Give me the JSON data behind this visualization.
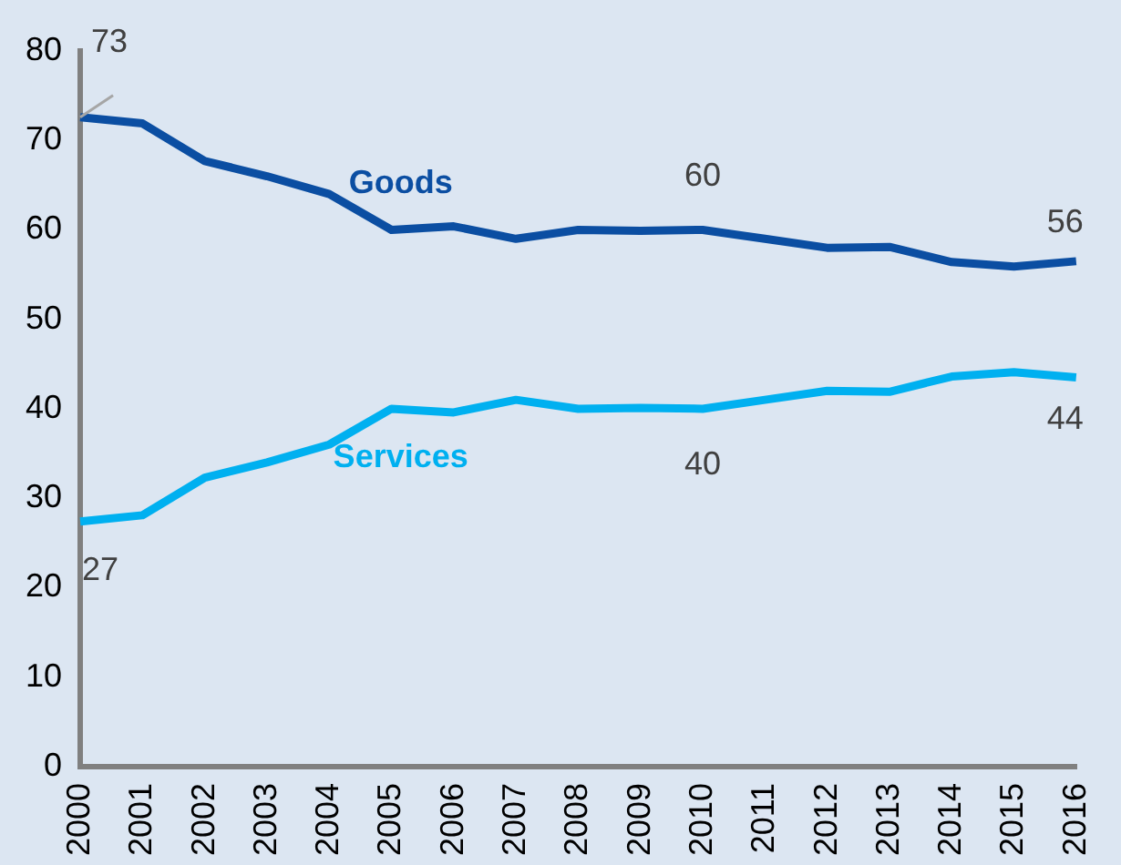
{
  "chart_data": {
    "type": "line",
    "categories": [
      "2000",
      "2001",
      "2002",
      "2003",
      "2004",
      "2005",
      "2006",
      "2007",
      "2008",
      "2009",
      "2010",
      "2011",
      "2012",
      "2013",
      "2014",
      "2015",
      "2016"
    ],
    "series": [
      {
        "name": "Goods",
        "color": "#0b4ea2",
        "values": [
          72.6,
          71.9,
          67.7,
          66,
          64,
          60,
          60.4,
          59,
          60,
          59.9,
          60,
          59,
          58,
          58.1,
          56.4,
          55.9,
          56.5
        ],
        "value_labels": [
          "73",
          null,
          null,
          null,
          null,
          null,
          null,
          null,
          null,
          null,
          "60",
          null,
          null,
          null,
          null,
          null,
          "56"
        ]
      },
      {
        "name": "Services",
        "color": "#00b0f0",
        "values": [
          27.4,
          28.1,
          32.3,
          34,
          36,
          40,
          39.6,
          41,
          40,
          40.1,
          40,
          41,
          42,
          41.9,
          43.6,
          44.1,
          43.5
        ],
        "value_labels": [
          "27",
          null,
          null,
          null,
          null,
          null,
          null,
          null,
          null,
          null,
          "40",
          null,
          null,
          null,
          null,
          null,
          "44"
        ]
      }
    ],
    "ylim": [
      0,
      80
    ],
    "yticks": [
      0,
      10,
      20,
      30,
      40,
      50,
      60,
      70,
      80
    ],
    "grid": false,
    "legend": false,
    "marker": "none",
    "line_style": "solid"
  }
}
